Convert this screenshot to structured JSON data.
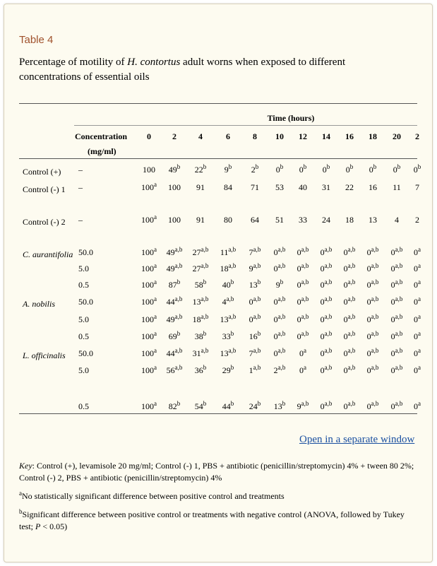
{
  "table_label": "Table 4",
  "caption": {
    "before": "Percentage of motility of ",
    "species": "H. contortus",
    "after": " adult worns when exposed to different concentrations of essential oils"
  },
  "header": {
    "group": "Time (hours)",
    "concentration": "Concentration",
    "unit": "(mg/ml)",
    "times": [
      "0",
      "2",
      "4",
      "6",
      "8",
      "10",
      "12",
      "14",
      "16",
      "18",
      "20",
      "2"
    ]
  },
  "rows": [
    {
      "label": "Control (+)",
      "conc": "–",
      "cells": [
        [
          "100",
          ""
        ],
        [
          "49",
          "b"
        ],
        [
          "22",
          "b"
        ],
        [
          "9",
          "b"
        ],
        [
          "2",
          "b"
        ],
        [
          "0",
          "b"
        ],
        [
          "0",
          "b"
        ],
        [
          "0",
          "b"
        ],
        [
          "0",
          "b"
        ],
        [
          "0",
          "b"
        ],
        [
          "0",
          "b"
        ],
        [
          "0",
          "b"
        ]
      ]
    },
    {
      "label": "Control (-) 1",
      "conc": "–",
      "cells": [
        [
          "100",
          "a"
        ],
        [
          "100",
          ""
        ],
        [
          "91",
          ""
        ],
        [
          "84",
          ""
        ],
        [
          "71",
          ""
        ],
        [
          "53",
          ""
        ],
        [
          "40",
          ""
        ],
        [
          "31",
          ""
        ],
        [
          "22",
          ""
        ],
        [
          "16",
          ""
        ],
        [
          "11",
          ""
        ],
        [
          "7",
          ""
        ]
      ]
    },
    {
      "label": "Control (-) 2",
      "conc": "–",
      "cells": [
        [
          "100",
          "a"
        ],
        [
          "100",
          ""
        ],
        [
          "91",
          ""
        ],
        [
          "80",
          ""
        ],
        [
          "64",
          ""
        ],
        [
          "51",
          ""
        ],
        [
          "33",
          ""
        ],
        [
          "24",
          ""
        ],
        [
          "18",
          ""
        ],
        [
          "13",
          ""
        ],
        [
          "4",
          ""
        ],
        [
          "2",
          ""
        ]
      ]
    },
    {
      "label": "C. aurantifolia",
      "conc": "50.0",
      "cells": [
        [
          "100",
          "a"
        ],
        [
          "49",
          "a,b"
        ],
        [
          "27",
          "a,b"
        ],
        [
          "11",
          "a,b"
        ],
        [
          "7",
          "a,b"
        ],
        [
          "0",
          "a,b"
        ],
        [
          "0",
          "a,b"
        ],
        [
          "0",
          "a,b"
        ],
        [
          "0",
          "a,b"
        ],
        [
          "0",
          "a,b"
        ],
        [
          "0",
          "a,b"
        ],
        [
          "0",
          "a"
        ]
      ]
    },
    {
      "label": "",
      "conc": "5.0",
      "cells": [
        [
          "100",
          "a"
        ],
        [
          "49",
          "a,b"
        ],
        [
          "27",
          "a,b"
        ],
        [
          "18",
          "a,b"
        ],
        [
          "9",
          "a,b"
        ],
        [
          "0",
          "a,b"
        ],
        [
          "0",
          "a,b"
        ],
        [
          "0",
          "a,b"
        ],
        [
          "0",
          "a,b"
        ],
        [
          "0",
          "a,b"
        ],
        [
          "0",
          "a,b"
        ],
        [
          "0",
          "a"
        ]
      ]
    },
    {
      "label": "",
      "conc": "0.5",
      "cells": [
        [
          "100",
          "a"
        ],
        [
          "87",
          "b"
        ],
        [
          "58",
          "b"
        ],
        [
          "40",
          "b"
        ],
        [
          "13",
          "b"
        ],
        [
          "9",
          "b"
        ],
        [
          "0",
          "a,b"
        ],
        [
          "0",
          "a,b"
        ],
        [
          "0",
          "a,b"
        ],
        [
          "0",
          "a,b"
        ],
        [
          "0",
          "a,b"
        ],
        [
          "0",
          "a"
        ]
      ]
    },
    {
      "label": "A. nobilis",
      "conc": "50.0",
      "cells": [
        [
          "100",
          "a"
        ],
        [
          "44",
          "a,b"
        ],
        [
          "13",
          "a,b"
        ],
        [
          "4",
          "a,b"
        ],
        [
          "0",
          "a,b"
        ],
        [
          "0",
          "a,b"
        ],
        [
          "0",
          "a,b"
        ],
        [
          "0",
          "a,b"
        ],
        [
          "0",
          "a,b"
        ],
        [
          "0",
          "a,b"
        ],
        [
          "0",
          "a,b"
        ],
        [
          "0",
          "a"
        ]
      ]
    },
    {
      "label": "",
      "conc": "5.0",
      "cells": [
        [
          "100",
          "a"
        ],
        [
          "49",
          "a,b"
        ],
        [
          "18",
          "a,b"
        ],
        [
          "13",
          "a,b"
        ],
        [
          "0",
          "a,b"
        ],
        [
          "0",
          "a,b"
        ],
        [
          "0",
          "a,b"
        ],
        [
          "0",
          "a,b"
        ],
        [
          "0",
          "a,b"
        ],
        [
          "0",
          "a,b"
        ],
        [
          "0",
          "a,b"
        ],
        [
          "0",
          "a"
        ]
      ]
    },
    {
      "label": "",
      "conc": "0.5",
      "cells": [
        [
          "100",
          "a"
        ],
        [
          "69",
          "b"
        ],
        [
          "38",
          "b"
        ],
        [
          "33",
          "b"
        ],
        [
          "16",
          "b"
        ],
        [
          "0",
          "a,b"
        ],
        [
          "0",
          "a,b"
        ],
        [
          "0",
          "a,b"
        ],
        [
          "0",
          "a,b"
        ],
        [
          "0",
          "a,b"
        ],
        [
          "0",
          "a,b"
        ],
        [
          "0",
          "a"
        ]
      ]
    },
    {
      "label": "L. officinalis",
      "conc": "50.0",
      "cells": [
        [
          "100",
          "a"
        ],
        [
          "44",
          "a,b"
        ],
        [
          "31",
          "a,b"
        ],
        [
          "13",
          "a,b"
        ],
        [
          "7",
          "a,b"
        ],
        [
          "0",
          "a,b"
        ],
        [
          "0",
          "a"
        ],
        [
          "0",
          "a,b"
        ],
        [
          "0",
          "a,b"
        ],
        [
          "0",
          "a,b"
        ],
        [
          "0",
          "a,b"
        ],
        [
          "0",
          "a"
        ]
      ]
    },
    {
      "label": "",
      "conc": "5.0",
      "cells": [
        [
          "100",
          "a"
        ],
        [
          "56",
          "a,b"
        ],
        [
          "36",
          "b"
        ],
        [
          "29",
          "b"
        ],
        [
          "1",
          "a,b"
        ],
        [
          "2",
          "a,b"
        ],
        [
          "0",
          "a"
        ],
        [
          "0",
          "a,b"
        ],
        [
          "0",
          "a,b"
        ],
        [
          "0",
          "a,b"
        ],
        [
          "0",
          "a,b"
        ],
        [
          "0",
          "a"
        ]
      ]
    },
    {
      "label": "",
      "conc": "0.5",
      "cells": [
        [
          "100",
          "a"
        ],
        [
          "82",
          "b"
        ],
        [
          "54",
          "b"
        ],
        [
          "44",
          "b"
        ],
        [
          "24",
          "b"
        ],
        [
          "13",
          "b"
        ],
        [
          "9",
          "a,b"
        ],
        [
          "0",
          "a,b"
        ],
        [
          "0",
          "a,b"
        ],
        [
          "0",
          "a,b"
        ],
        [
          "0",
          "a,b"
        ],
        [
          "0",
          "a"
        ]
      ]
    }
  ],
  "link_text": "Open in a separate window",
  "footnotes": {
    "key_label": "Key",
    "key_text": ": Control (+), levamisole 20 mg/ml; Control (-) 1, PBS + antibiotic (penicillin/streptomycin) 4% + tween 80 2%; Control (-) 2, PBS + antibiotic (penicillin/streptomycin) 4%",
    "a_mark": "a",
    "a_text": "No statistically significant difference between positive control and treatments",
    "b_mark": "b",
    "b_text_1": "Significant difference between positive control or treatments with negative control (ANOVA, followed by Tukey test; ",
    "b_p": "P",
    "b_text_2": " < 0.05)"
  }
}
